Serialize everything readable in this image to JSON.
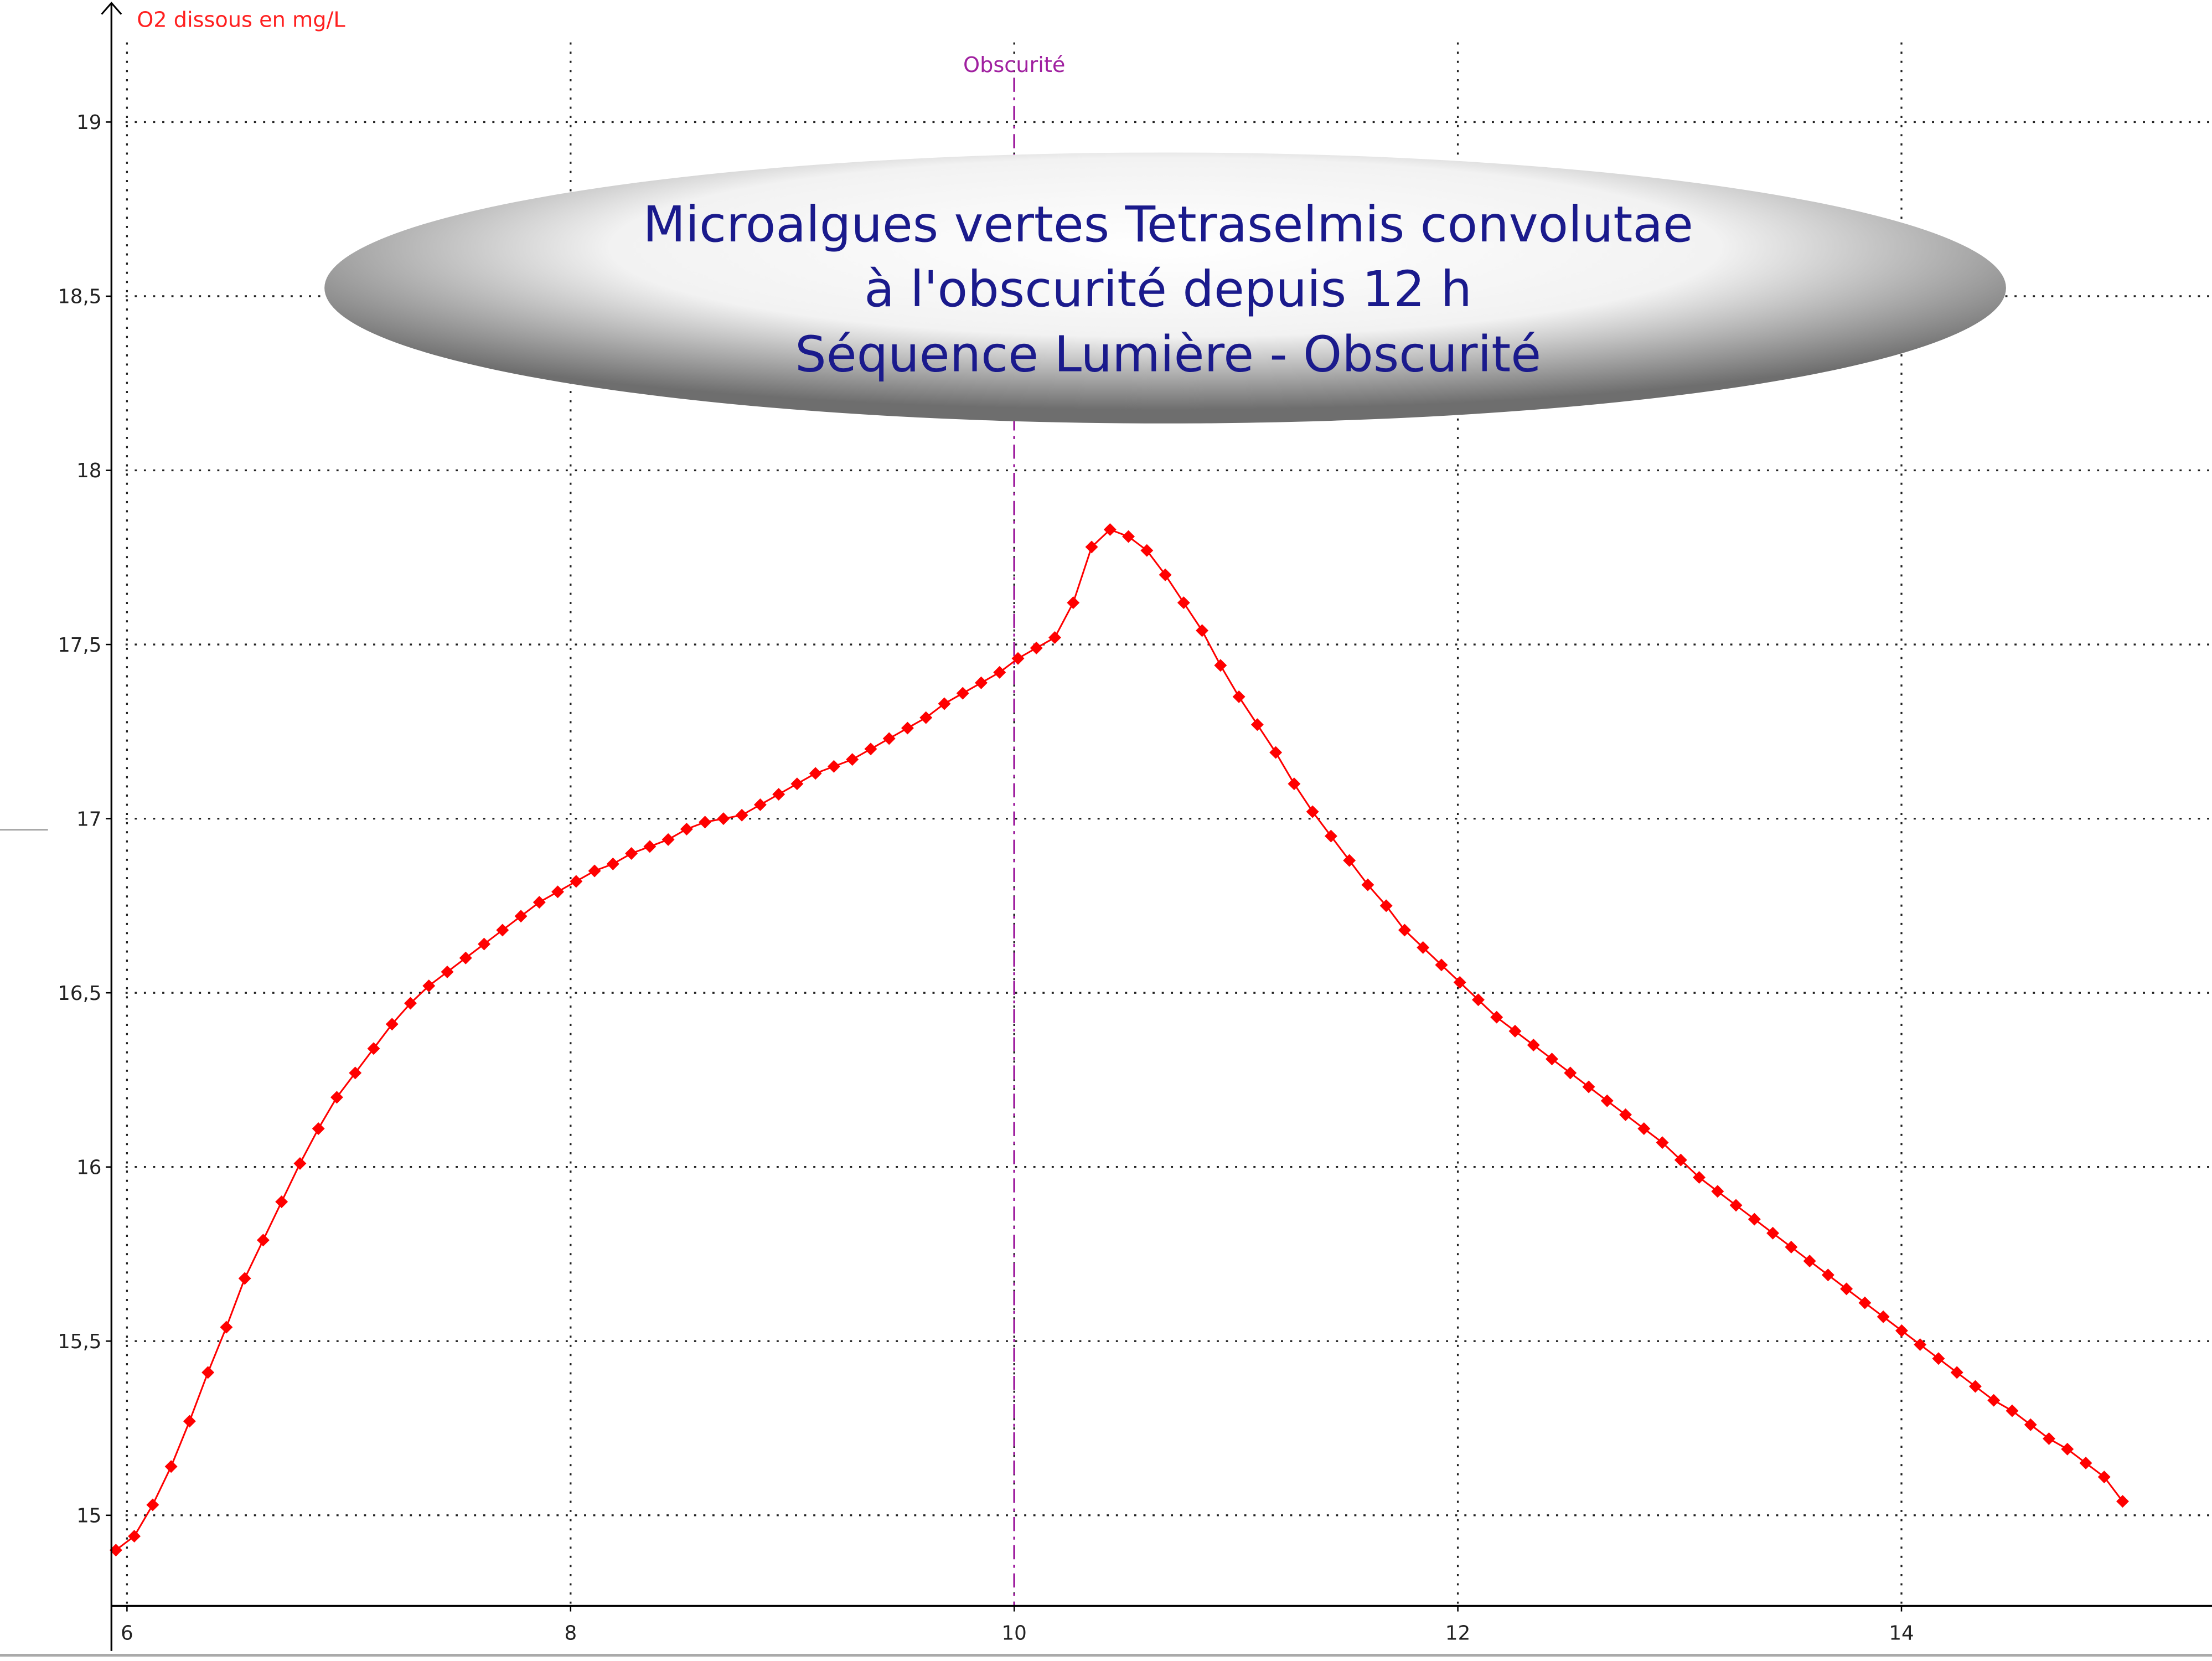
{
  "chart_data": {
    "type": "line",
    "title": [
      "Microalgues vertes Tetraselmis convolutae",
      "à l'obscurité depuis 12 h",
      "Séquence Lumière - Obscurité"
    ],
    "y_label": "O2 dissous en mg/L",
    "annotation": {
      "text": "Obscurité",
      "x": 10,
      "color": "#a020a0"
    },
    "xlim": [
      5.93,
      15.4
    ],
    "ylim": [
      14.74,
      19.35
    ],
    "xticks": [
      6,
      8,
      10,
      12,
      14
    ],
    "yticks": [
      15,
      {
        "value": 15.5,
        "label": "15,5"
      },
      16,
      {
        "value": 16.5,
        "label": "16,5"
      },
      17,
      {
        "value": 17.5,
        "label": "17,5"
      },
      18,
      {
        "value": 18.5,
        "label": "18,5"
      },
      19
    ],
    "grid": true,
    "series": [
      {
        "color": "#ff0000",
        "x": [
          5.95,
          6.033,
          6.116,
          6.199,
          6.282,
          6.365,
          6.448,
          6.531,
          6.614,
          6.697,
          6.78,
          6.863,
          6.946,
          7.029,
          7.112,
          7.195,
          7.278,
          7.361,
          7.444,
          7.527,
          7.61,
          7.693,
          7.776,
          7.859,
          7.942,
          8.025,
          8.108,
          8.191,
          8.274,
          8.357,
          8.44,
          8.523,
          8.606,
          8.689,
          8.772,
          8.855,
          8.938,
          9.021,
          9.104,
          9.187,
          9.27,
          9.353,
          9.436,
          9.519,
          9.602,
          9.685,
          9.768,
          9.851,
          9.934,
          10.017,
          10.1,
          10.183,
          10.266,
          10.349,
          10.432,
          10.515,
          10.598,
          10.681,
          10.764,
          10.847,
          10.93,
          11.013,
          11.096,
          11.179,
          11.262,
          11.345,
          11.428,
          11.511,
          11.594,
          11.677,
          11.76,
          11.843,
          11.926,
          12.009,
          12.092,
          12.175,
          12.258,
          12.341,
          12.424,
          12.507,
          12.59,
          12.673,
          12.756,
          12.839,
          12.922,
          13.005,
          13.088,
          13.171,
          13.254,
          13.337,
          13.42,
          13.503,
          13.586,
          13.669,
          13.752,
          13.835,
          13.918,
          14.001,
          14.084,
          14.167,
          14.25,
          14.333,
          14.416,
          14.499,
          14.582,
          14.665,
          14.748,
          14.831,
          14.914,
          14.997
        ],
        "values": [
          14.9,
          14.94,
          15.03,
          15.14,
          15.27,
          15.41,
          15.54,
          15.68,
          15.79,
          15.9,
          16.01,
          16.11,
          16.2,
          16.27,
          16.34,
          16.41,
          16.47,
          16.52,
          16.56,
          16.6,
          16.64,
          16.68,
          16.72,
          16.76,
          16.79,
          16.82,
          16.85,
          16.87,
          16.9,
          16.92,
          16.94,
          16.97,
          16.99,
          17.0,
          17.01,
          17.04,
          17.07,
          17.1,
          17.13,
          17.15,
          17.17,
          17.2,
          17.23,
          17.26,
          17.29,
          17.33,
          17.36,
          17.39,
          17.42,
          17.46,
          17.49,
          17.52,
          17.62,
          17.78,
          17.83,
          17.81,
          17.77,
          17.7,
          17.62,
          17.54,
          17.44,
          17.35,
          17.27,
          17.19,
          17.1,
          17.02,
          16.95,
          16.88,
          16.81,
          16.75,
          16.68,
          16.63,
          16.58,
          16.53,
          16.48,
          16.43,
          16.39,
          16.35,
          16.31,
          16.27,
          16.23,
          16.19,
          16.15,
          16.11,
          16.07,
          16.02,
          15.97,
          15.93,
          15.89,
          15.85,
          15.81,
          15.77,
          15.73,
          15.69,
          15.65,
          15.61,
          15.57,
          15.53,
          15.49,
          15.45,
          15.41,
          15.37,
          15.33,
          15.3,
          15.26,
          15.22,
          15.19,
          15.15,
          15.11,
          15.04
        ]
      }
    ]
  }
}
